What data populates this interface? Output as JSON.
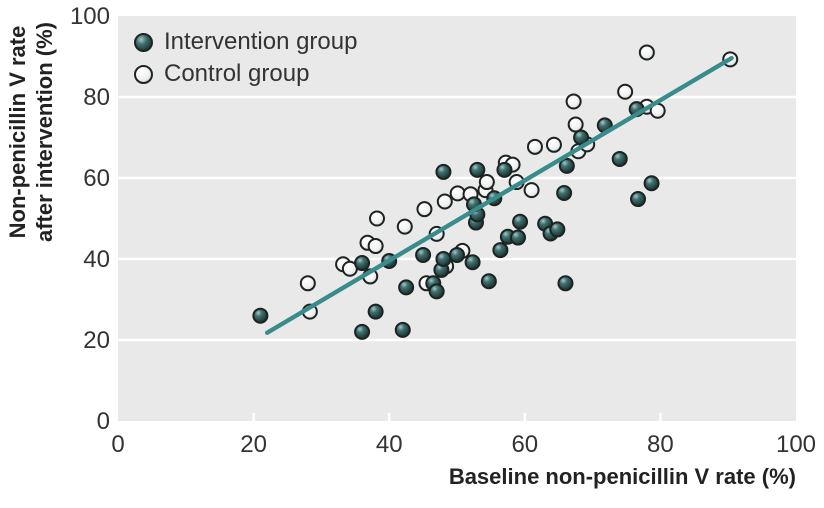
{
  "chart_data": {
    "type": "scatter",
    "title": "",
    "xlabel": "Baseline non-penicillin V rate (%)",
    "ylabel_line1": "Non-penicillin V rate",
    "ylabel_line2": "after intervention (%)",
    "xlim": [
      0,
      100
    ],
    "ylim": [
      0,
      100
    ],
    "xticks": [
      0,
      20,
      40,
      60,
      80,
      100
    ],
    "yticks": [
      0,
      20,
      40,
      60,
      80,
      100
    ],
    "grid": "horizontal white gridlines on light gray panel",
    "legend_position": "top-left inside plot",
    "series": [
      {
        "name": "Intervention group",
        "marker": "dark-teal-sphere",
        "color": "#2d5757",
        "points": [
          [
            21,
            26
          ],
          [
            36,
            22
          ],
          [
            42,
            22.5
          ],
          [
            38,
            27
          ],
          [
            36,
            39
          ],
          [
            40,
            39.5
          ],
          [
            42.5,
            33
          ],
          [
            46.5,
            34
          ],
          [
            47,
            32
          ],
          [
            47.7,
            37.3
          ],
          [
            45,
            41
          ],
          [
            48,
            40
          ],
          [
            50,
            41
          ],
          [
            52.3,
            39.2
          ],
          [
            54.7,
            34.5
          ],
          [
            66,
            34
          ],
          [
            52.8,
            49
          ],
          [
            53,
            51
          ],
          [
            52.5,
            53.5
          ],
          [
            55.5,
            55
          ],
          [
            48,
            61.5
          ],
          [
            53,
            62
          ],
          [
            57,
            62
          ],
          [
            57.5,
            45.5
          ],
          [
            59,
            45.3
          ],
          [
            59.3,
            49.2
          ],
          [
            56.4,
            42.2
          ],
          [
            63,
            48.7
          ],
          [
            63.8,
            46.3
          ],
          [
            64.8,
            47.3
          ],
          [
            65.8,
            56.3
          ],
          [
            66.2,
            63
          ],
          [
            68.3,
            70
          ],
          [
            71.8,
            73
          ],
          [
            74,
            64.7
          ],
          [
            76.5,
            77
          ],
          [
            76.7,
            54.8
          ],
          [
            78.7,
            58.7
          ]
        ]
      },
      {
        "name": "Control group",
        "marker": "white-sphere",
        "color": "#f2f2f2",
        "points": [
          [
            28,
            34
          ],
          [
            28.3,
            27
          ],
          [
            33.2,
            38.7
          ],
          [
            34.2,
            37.6
          ],
          [
            37.2,
            35.7
          ],
          [
            36.8,
            44
          ],
          [
            38,
            43.2
          ],
          [
            38.2,
            50
          ],
          [
            42.3,
            48
          ],
          [
            45.2,
            52.3
          ],
          [
            47,
            46.2
          ],
          [
            48.2,
            54.2
          ],
          [
            48.4,
            38.2
          ],
          [
            50.1,
            56.2
          ],
          [
            50.8,
            42
          ],
          [
            52,
            56
          ],
          [
            54.2,
            57
          ],
          [
            54.4,
            59
          ],
          [
            45.5,
            34
          ],
          [
            57.2,
            63.8
          ],
          [
            58.2,
            63.3
          ],
          [
            58.8,
            59
          ],
          [
            61,
            57
          ],
          [
            61.5,
            67.7
          ],
          [
            64.3,
            68.2
          ],
          [
            67.2,
            78.9
          ],
          [
            67.5,
            73.2
          ],
          [
            67.9,
            66.6
          ],
          [
            69.2,
            68.3
          ],
          [
            74.8,
            81.3
          ],
          [
            78,
            91
          ],
          [
            78,
            77.6
          ],
          [
            79.6,
            76.6
          ],
          [
            90.3,
            89.3
          ]
        ]
      }
    ],
    "trendline": {
      "from": [
        22,
        21.8
      ],
      "to": [
        90.5,
        89.6
      ],
      "color": "#3a8c8c"
    },
    "style": {
      "panel_bg": "#e9e9e9",
      "gridline_color": "#ffffff",
      "tick_text_color": "#333333",
      "marker_outline": "#1d2222"
    }
  }
}
